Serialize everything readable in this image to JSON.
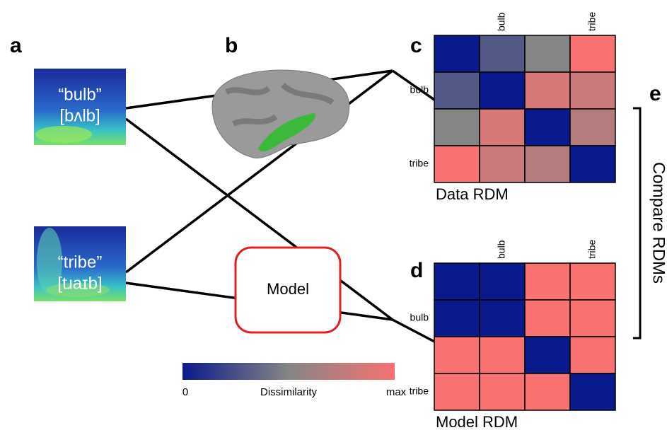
{
  "panels": {
    "a": "a",
    "b": "b",
    "c": "c",
    "d": "d",
    "e": "e"
  },
  "stimuli": [
    {
      "word": "“bulb”",
      "ipa": "[bʌlb]"
    },
    {
      "word": "“tribe”",
      "ipa": "[tɹaɪb]"
    }
  ],
  "model": {
    "label": "Model"
  },
  "matrices": [
    {
      "title": "Data RDM",
      "labels": [
        null,
        "bulb",
        null,
        "tribe"
      ],
      "values": [
        [
          0,
          0.3,
          0.5,
          1
        ],
        [
          0.3,
          0,
          0.85,
          0.8
        ],
        [
          0.5,
          0.85,
          0,
          0.7
        ],
        [
          1,
          0.8,
          0.7,
          0
        ]
      ]
    },
    {
      "title": "Model RDM",
      "labels": [
        null,
        "bulb",
        null,
        "tribe"
      ],
      "values": [
        [
          0,
          0,
          1,
          1
        ],
        [
          0,
          0,
          1,
          1
        ],
        [
          1,
          1,
          0,
          1
        ],
        [
          1,
          1,
          1,
          0
        ]
      ]
    }
  ],
  "compare": "Compare RDMs",
  "colorbar": {
    "title": "Dissimilarity",
    "min_label": "0",
    "max_label": "max",
    "range": [
      0,
      1
    ]
  }
}
